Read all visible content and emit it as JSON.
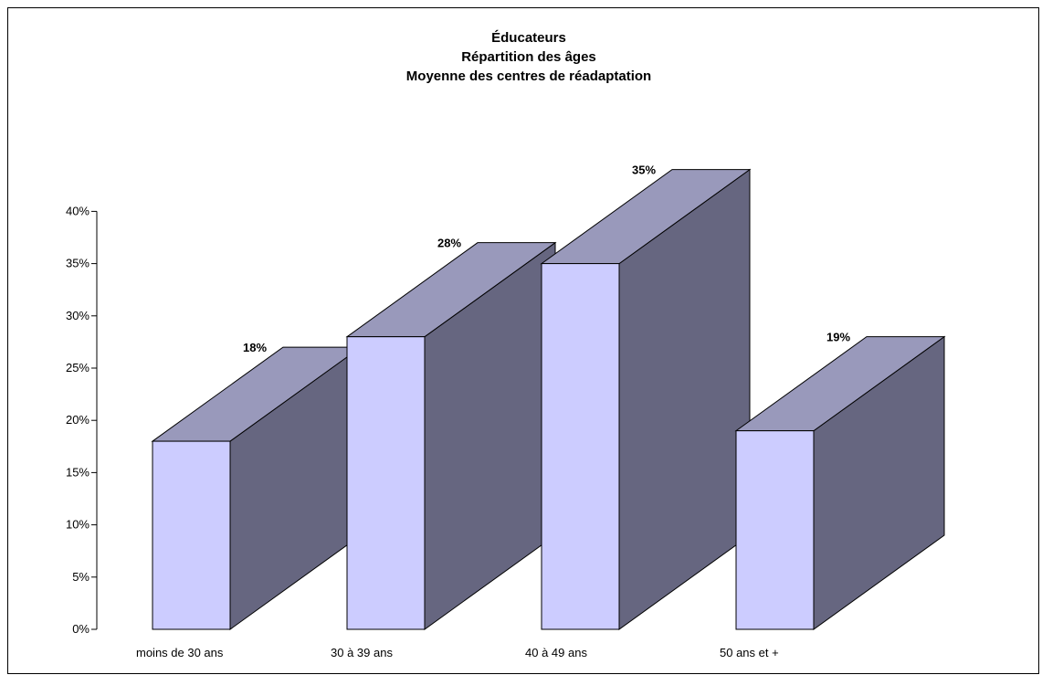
{
  "chart_data": {
    "type": "bar",
    "title_lines": [
      "Éducateurs",
      "Répartition des âges",
      "Moyenne des centres de réadaptation"
    ],
    "categories": [
      "moins de 30 ans",
      "30 à 39 ans",
      "40 à 49 ans",
      "50 ans et +"
    ],
    "values": [
      18,
      28,
      35,
      19
    ],
    "data_labels": [
      "18%",
      "28%",
      "35%",
      "19%"
    ],
    "y_ticks": [
      "0%",
      "5%",
      "10%",
      "15%",
      "20%",
      "25%",
      "30%",
      "35%",
      "40%"
    ],
    "ylim": [
      0,
      40
    ],
    "xlabel": "",
    "ylabel": "",
    "legend": "none",
    "grid": false,
    "is_3d": true,
    "colors": {
      "front": "#CCCCFF",
      "top": "#9999BB",
      "side": "#666680",
      "stroke": "#000000"
    }
  }
}
